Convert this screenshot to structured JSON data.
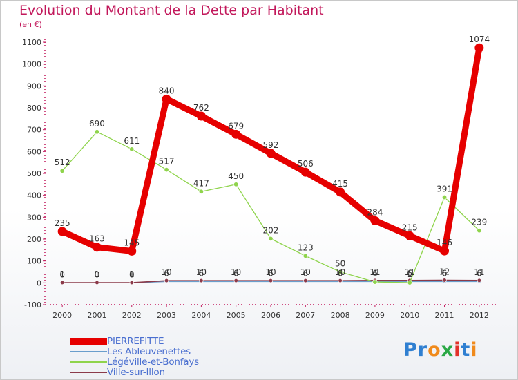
{
  "title": "Evolution du Montant de la Dette par Habitant",
  "unit": "(en €)",
  "logo": {
    "text": "Proxiti",
    "letter_colors": [
      "#2f7fd1",
      "#2f7fd1",
      "#f08a1c",
      "#2aa845",
      "#e2322b",
      "#2f7fd1",
      "#f08a1c"
    ]
  },
  "chart_data": {
    "type": "line",
    "title": "Evolution du Montant de la Dette par Habitant",
    "ylabel": "(en €)",
    "xlabel": "",
    "x": [
      "2000",
      "2001",
      "2002",
      "2003",
      "2004",
      "2005",
      "2006",
      "2007",
      "2008",
      "2009",
      "2010",
      "2011",
      "2012"
    ],
    "ylim": [
      -100,
      1100
    ],
    "yticks": [
      -100,
      0,
      100,
      200,
      300,
      400,
      500,
      600,
      700,
      800,
      900,
      1000,
      1100
    ],
    "grid": false,
    "legend_position": "bottom-left",
    "series": [
      {
        "name": "PIERREFITTE",
        "color": "#e60000",
        "values": [
          235,
          163,
          145,
          840,
          762,
          679,
          592,
          506,
          415,
          284,
          215,
          146,
          1074
        ],
        "labels": [
          "235",
          "163",
          "145",
          "840",
          "762",
          "679",
          "592",
          "506",
          "415",
          "284",
          "215",
          "146",
          "1074"
        ]
      },
      {
        "name": "Les Ableuvenettes",
        "color": "#6a9ecc",
        "values": [
          0,
          0,
          0,
          6,
          6,
          6,
          6,
          6,
          6,
          6,
          6,
          6,
          6
        ],
        "labels": [
          "0",
          "0",
          "0",
          "6",
          "6",
          "6",
          "6",
          "6",
          "6",
          "6",
          "6",
          "6",
          "6"
        ]
      },
      {
        "name": "Légéville-et-Bonfays",
        "color": "#8fd44c",
        "values": [
          512,
          690,
          611,
          517,
          417,
          450,
          202,
          123,
          50,
          4,
          1,
          391,
          239
        ],
        "labels": [
          "512",
          "690",
          "611",
          "517",
          "417",
          "450",
          "202",
          "123",
          "50",
          "4",
          "1",
          "391",
          "239"
        ]
      },
      {
        "name": "Ville-sur-Illon",
        "color": "#8b3a4a",
        "values": [
          1,
          1,
          1,
          10,
          10,
          10,
          10,
          10,
          10,
          11,
          11,
          12,
          11
        ],
        "labels": [
          "1",
          "1",
          "1",
          "10",
          "10",
          "10",
          "10",
          "10",
          "10",
          "11",
          "11",
          "12",
          "11"
        ]
      }
    ]
  }
}
